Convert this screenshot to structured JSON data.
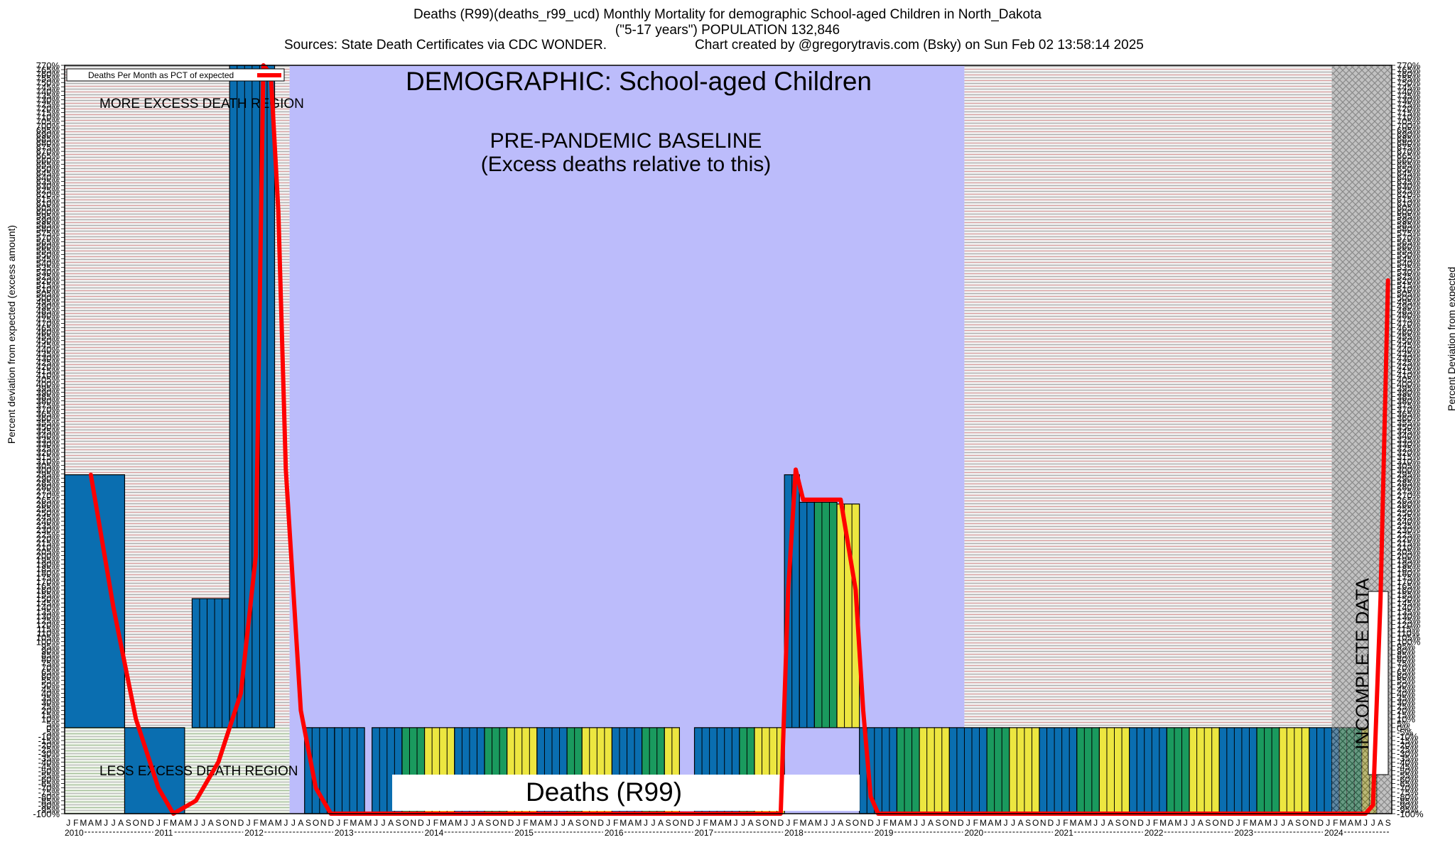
{
  "header": {
    "title": "Deaths (R99)(deaths_r99_ucd) Monthly Mortality for demographic School-aged Children in North_Dakota",
    "subtitle": "(\"5-17 years\") POPULATION 132,846",
    "sources": "Sources: State Death Certificates via CDC WONDER.",
    "credit": "Chart created by @gregorytravis.com (Bsky) on Sun Feb 02 13:58:14 2025"
  },
  "chart_data": {
    "type": "bar",
    "demographic_label": "DEMOGRAPHIC: School-aged Children",
    "baseline_label_line1": "PRE-PANDEMIC BASELINE",
    "baseline_label_line2": "(Excess deaths relative to this)",
    "more_region_label": "MORE EXCESS DEATH REGION",
    "less_region_label": "LESS EXCESS DEATH REGION",
    "incomplete_label": "INCOMPLETE DATA",
    "bottom_label": "Deaths (R99)",
    "legend": "Deaths Per Month as PCT of expected",
    "ylabel_left": "Percent deviation from expected (excess amount)",
    "ylabel_right": "Percent Deviation from expected",
    "ylim": [
      -100,
      770
    ],
    "ytick_step": 5,
    "x_start": "2010-01",
    "x_end": "2024-09",
    "baseline_period": [
      "2012-07",
      "2019-12"
    ],
    "incomplete_period": [
      "2024-02",
      "2024-09"
    ],
    "year_labels": [
      "2010",
      "2011",
      "2012",
      "2013",
      "2014",
      "2015",
      "2016",
      "2017",
      "2018",
      "2019",
      "2020",
      "2021",
      "2022",
      "2023",
      "2024"
    ],
    "month_letters": [
      "J",
      "F",
      "M",
      "A",
      "M",
      "J",
      "J",
      "A",
      "S",
      "O",
      "N",
      "D"
    ],
    "colors": {
      "bar_blue": "#0a6eb0",
      "bar_green": "#1a9a5e",
      "bar_yellow": "#ece640",
      "line_red": "#ff0000",
      "baseline_fill": "#bcbcfb",
      "incomplete_fill": "#9c9c9c"
    },
    "bars": [
      {
        "start": "2010-01",
        "end": "2010-08",
        "value": 294,
        "color": "blue"
      },
      {
        "start": "2010-09",
        "end": "2011-04",
        "value": -100,
        "color": "blue"
      },
      {
        "start": "2011-06",
        "end": "2011-10",
        "value": 150,
        "color": "blue"
      },
      {
        "start": "2011-11",
        "end": "2012-04",
        "value": 770,
        "color": "blue"
      },
      {
        "start": "2012-05",
        "end": "2012-07",
        "value": 0,
        "color": "blue"
      },
      {
        "start": "2012-09",
        "end": "2012-12",
        "value": -100,
        "color": "blue"
      },
      {
        "start": "2013-01",
        "end": "2013-04",
        "value": -100,
        "color": "blue"
      },
      {
        "start": "2013-06",
        "end": "2013-09",
        "value": -100,
        "color": "blue"
      },
      {
        "start": "2013-10",
        "end": "2013-12",
        "value": -100,
        "color": "green"
      },
      {
        "start": "2014-01",
        "end": "2014-04",
        "value": -100,
        "color": "yellow"
      },
      {
        "start": "2014-05",
        "end": "2014-08",
        "value": -100,
        "color": "blue"
      },
      {
        "start": "2014-09",
        "end": "2014-11",
        "value": -100,
        "color": "green"
      },
      {
        "start": "2014-12",
        "end": "2015-03",
        "value": -100,
        "color": "yellow"
      },
      {
        "start": "2015-04",
        "end": "2015-07",
        "value": -100,
        "color": "blue"
      },
      {
        "start": "2015-08",
        "end": "2015-09",
        "value": -100,
        "color": "green"
      },
      {
        "start": "2015-10",
        "end": "2016-01",
        "value": -100,
        "color": "yellow"
      },
      {
        "start": "2016-02",
        "end": "2016-05",
        "value": -100,
        "color": "blue"
      },
      {
        "start": "2016-06",
        "end": "2016-08",
        "value": -100,
        "color": "green"
      },
      {
        "start": "2016-09",
        "end": "2016-10",
        "value": -100,
        "color": "yellow"
      },
      {
        "start": "2017-01",
        "end": "2017-06",
        "value": -100,
        "color": "blue"
      },
      {
        "start": "2017-07",
        "end": "2017-08",
        "value": -100,
        "color": "green"
      },
      {
        "start": "2017-09",
        "end": "2017-12",
        "value": -100,
        "color": "yellow"
      },
      {
        "start": "2018-01",
        "end": "2018-02",
        "value": 294,
        "color": "blue"
      },
      {
        "start": "2018-03",
        "end": "2018-04",
        "value": 262,
        "color": "blue"
      },
      {
        "start": "2018-05",
        "end": "2018-07",
        "value": 262,
        "color": "green"
      },
      {
        "start": "2018-08",
        "end": "2018-10",
        "value": 260,
        "color": "yellow"
      },
      {
        "start": "2018-11",
        "end": "2019-03",
        "value": -100,
        "color": "blue"
      },
      {
        "start": "2019-04",
        "end": "2019-06",
        "value": -100,
        "color": "green"
      },
      {
        "start": "2019-07",
        "end": "2019-10",
        "value": -100,
        "color": "yellow"
      },
      {
        "start": "2019-11",
        "end": "2020-03",
        "value": -100,
        "color": "blue"
      },
      {
        "start": "2020-04",
        "end": "2020-06",
        "value": -100,
        "color": "green"
      },
      {
        "start": "2020-07",
        "end": "2020-10",
        "value": -100,
        "color": "yellow"
      },
      {
        "start": "2020-11",
        "end": "2021-03",
        "value": -100,
        "color": "blue"
      },
      {
        "start": "2021-04",
        "end": "2021-06",
        "value": -100,
        "color": "green"
      },
      {
        "start": "2021-07",
        "end": "2021-10",
        "value": -100,
        "color": "yellow"
      },
      {
        "start": "2021-11",
        "end": "2022-03",
        "value": -100,
        "color": "blue"
      },
      {
        "start": "2022-04",
        "end": "2022-06",
        "value": -100,
        "color": "green"
      },
      {
        "start": "2022-07",
        "end": "2022-10",
        "value": -100,
        "color": "yellow"
      },
      {
        "start": "2022-11",
        "end": "2023-03",
        "value": -100,
        "color": "blue"
      },
      {
        "start": "2023-04",
        "end": "2023-06",
        "value": -100,
        "color": "green"
      },
      {
        "start": "2023-07",
        "end": "2023-10",
        "value": -100,
        "color": "yellow"
      },
      {
        "start": "2023-11",
        "end": "2024-02",
        "value": -100,
        "color": "blue"
      },
      {
        "start": "2024-03",
        "end": "2024-05",
        "value": -100,
        "color": "green"
      },
      {
        "start": "2024-06",
        "end": "2024-07",
        "value": -100,
        "color": "yellow"
      }
    ],
    "series": [
      {
        "name": "Deaths Per Month as PCT of expected",
        "points": [
          [
            "2010-04",
            294
          ],
          [
            "2010-07",
            140
          ],
          [
            "2010-10",
            10
          ],
          [
            "2011-01",
            -70
          ],
          [
            "2011-03",
            -100
          ],
          [
            "2011-06",
            -85
          ],
          [
            "2011-09",
            -40
          ],
          [
            "2011-12",
            40
          ],
          [
            "2012-02",
            200
          ],
          [
            "2012-03",
            770
          ],
          [
            "2012-04",
            760
          ],
          [
            "2012-05",
            600
          ],
          [
            "2012-06",
            300
          ],
          [
            "2012-08",
            20
          ],
          [
            "2012-10",
            -70
          ],
          [
            "2012-12",
            -100
          ],
          [
            "2017-12",
            -100
          ],
          [
            "2018-01",
            160
          ],
          [
            "2018-02",
            300
          ],
          [
            "2018-03",
            265
          ],
          [
            "2018-08",
            265
          ],
          [
            "2018-10",
            160
          ],
          [
            "2018-11",
            20
          ],
          [
            "2018-12",
            -80
          ],
          [
            "2019-01",
            -100
          ],
          [
            "2024-06",
            -100
          ],
          [
            "2024-07",
            -90
          ],
          [
            "2024-08",
            150
          ],
          [
            "2024-09",
            520
          ]
        ]
      }
    ]
  }
}
